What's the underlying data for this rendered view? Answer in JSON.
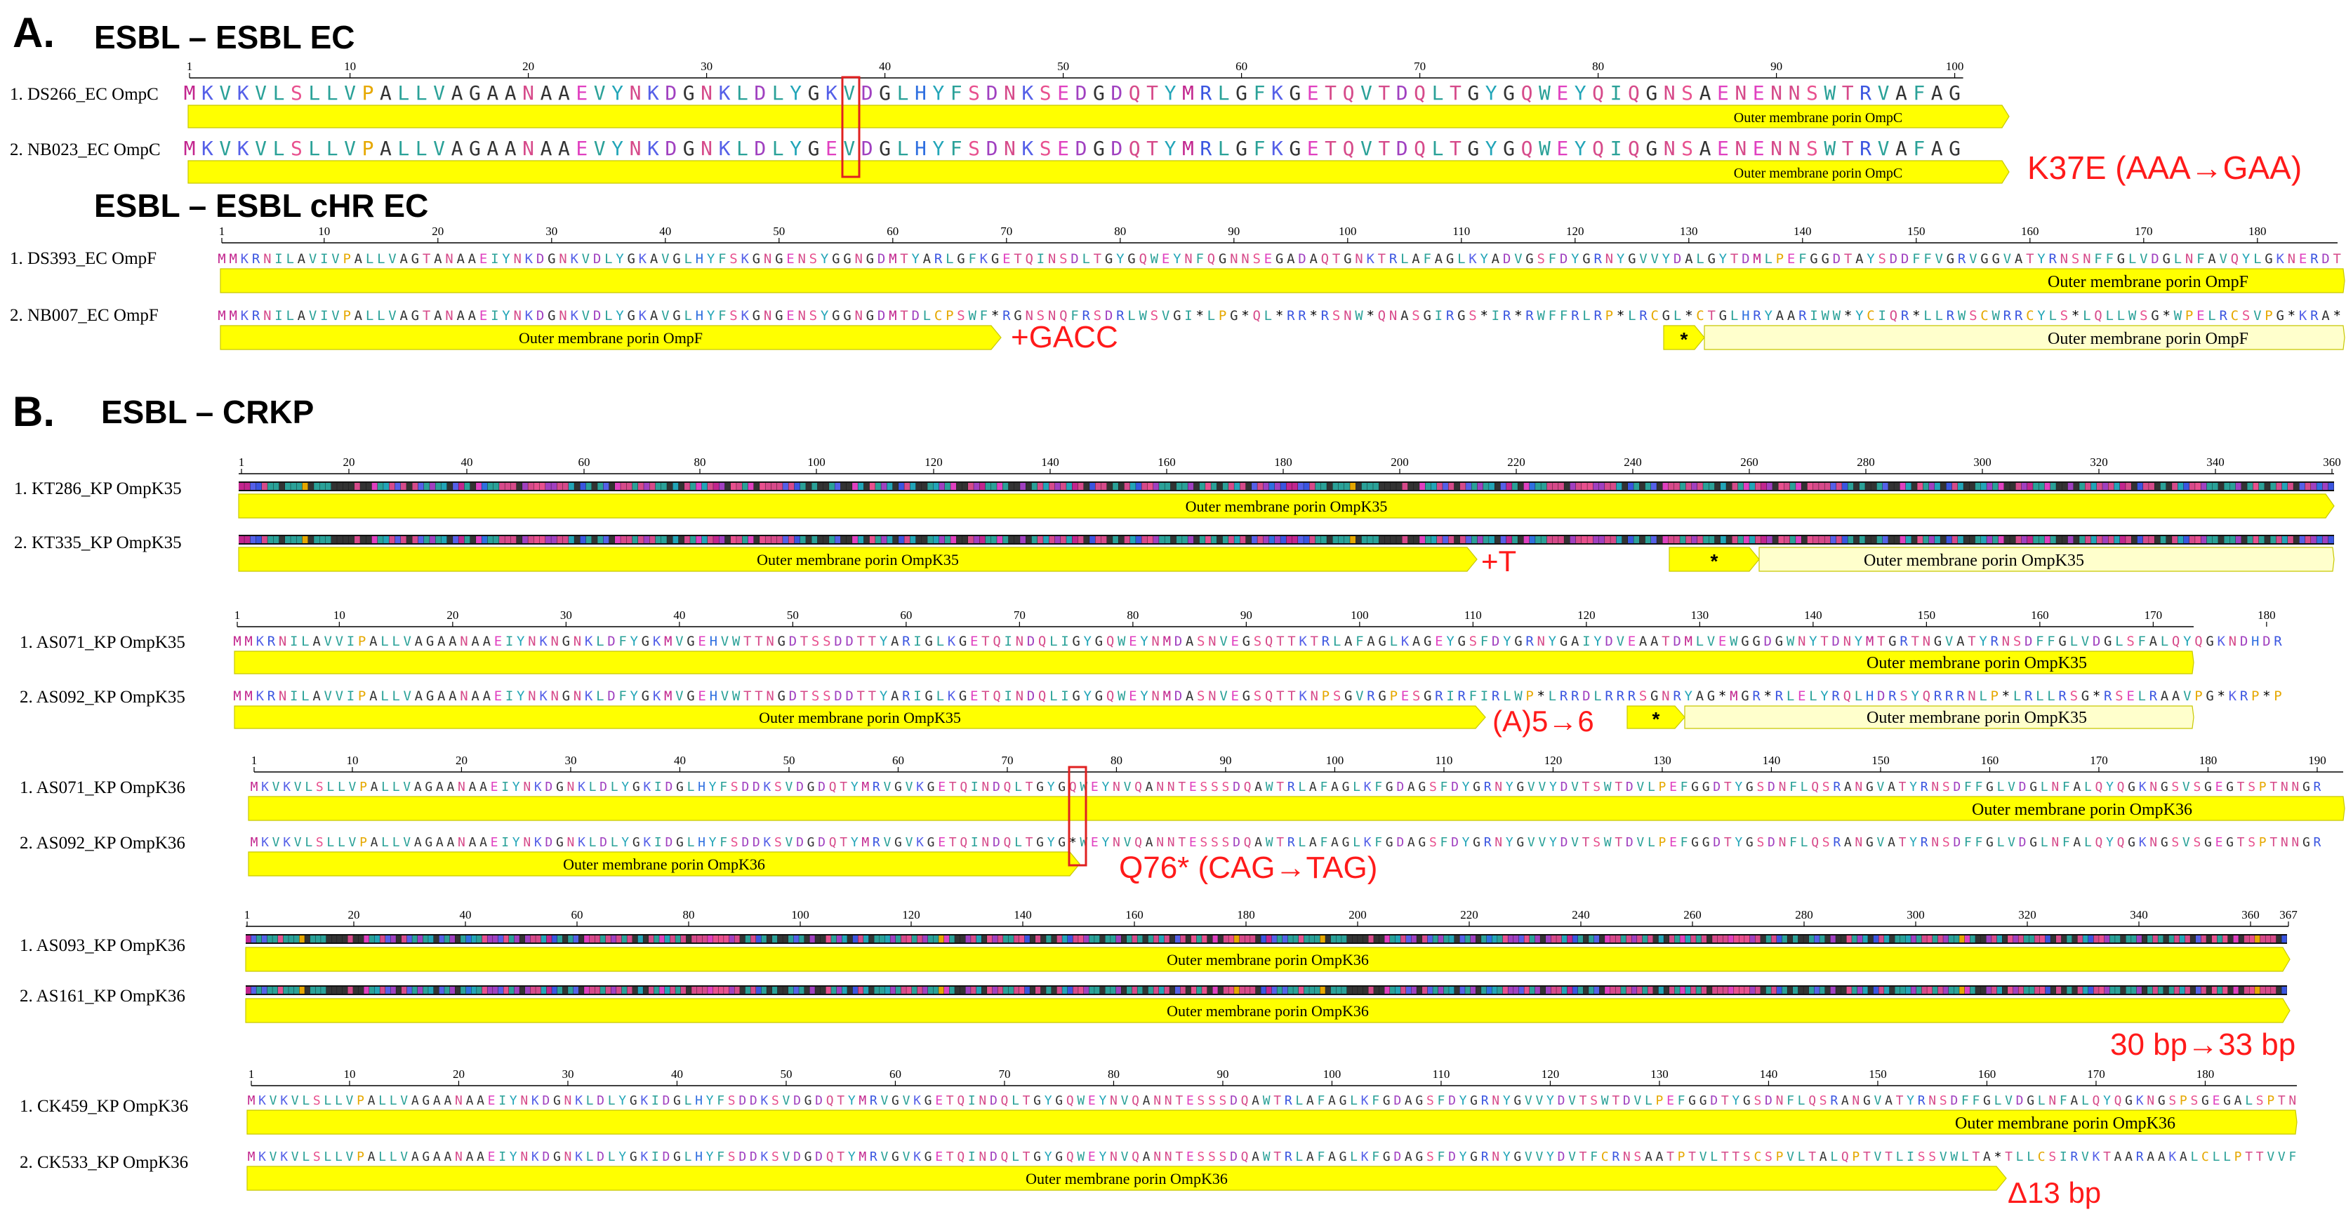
{
  "colors": {
    "annotation": "#ff1a1a",
    "feature_fill": "#ffff00",
    "feature_fill_light": "#ffffcc",
    "feature_border": "#c8c800",
    "mutation_box": "#e02020"
  },
  "residue_colors": {
    "M": "#c2258e",
    "K": "#5560e8",
    "V": "#2aa198",
    "L": "#2aa198",
    "S": "#e8508e",
    "P": "#e6a800",
    "A": "#333333",
    "G": "#333333",
    "E": "#e040c0",
    "Y": "#22a5b8",
    "N": "#d64a8a",
    "D": "#a040c0",
    "Q": "#d64a8a",
    "H": "#2f6fe0",
    "F": "#2aa198",
    "R": "#3a55e0",
    "T": "#d64a8a",
    "W": "#2aa198",
    "I": "#2aa198",
    "C": "#e6a800",
    "*": "#000000"
  },
  "section_a": {
    "letter": "A.",
    "heading_1": "ESBL – ESBL EC",
    "heading_2": "ESBL – ESBL cHR EC"
  },
  "section_b": {
    "letter": "B.",
    "heading": "ESBL – CRKP"
  },
  "feature_labels": {
    "ompc": "Outer membrane porin OmpC",
    "ompf": "Outer membrane porin OmpF",
    "ompk35": "Outer membrane porin OmpK35",
    "ompk36": "Outer membrane porin OmpK36",
    "stop_marker": "*"
  },
  "annotations": {
    "k37e": "K37E (AAA→GAA)",
    "gacc": "+GACC",
    "plus_t": "+T",
    "a5to6": "(A)5→6",
    "q76": "Q76* (CAG→TAG)",
    "bp30to33": "30 bp→33 bp",
    "del13": "Δ13 bp"
  },
  "alignments": [
    {
      "id": "ompc",
      "tick_labels": [
        "1",
        "10",
        "20",
        "30",
        "40",
        "50",
        "60",
        "70",
        "80",
        "90",
        "100"
      ],
      "rows": [
        {
          "label": "1. DS266_EC OmpC",
          "seq": "MKVKVLSLLVPALLVAGAANAAEVYNKDGNKLDLYGKVDGLHYFSDNKSEDGDQTYMRLGFKGETQVTDQLTGYGQWEYQIQGNSAENENNSWTRVAFAG"
        },
        {
          "label": "2. NB023_EC OmpC",
          "seq": "MKVKVLSLLVPALLVAGAANAAEVYNKDGNKLDLYGEVDGLHYFSDNKSEDGDQTYMRLGFKGETQVTDQLTGYGQWEYQIQGNSAENENNSWTRVAFAG"
        }
      ]
    },
    {
      "id": "ompf",
      "tick_labels": [
        "1",
        "10",
        "20",
        "30",
        "40",
        "50",
        "60",
        "70",
        "80",
        "90",
        "100",
        "110",
        "120",
        "130",
        "140",
        "150",
        "160",
        "170",
        "180"
      ],
      "rows": [
        {
          "label": "1. DS393_EC OmpF",
          "seq": "MMKRNILAVIVPALLVAGTANAAEIYNKDGNKVDLYGKAVGLHYFSKGNGENSYGGNGDMTYARLGFKGETQINSDLTGYGQWEYNFQGNNSEGADAQTGNKTRLAFAGLKYADVGSFDYGRNYGVVYDALGYTDMLPEFGGDTAYSDDFFVGRVGGVATYRNSNFFGLVDGLNFAVQYLGKNERDT"
        },
        {
          "label": "2. NB007_EC OmpF",
          "seq": "MMKRNILAVIVPALLVAGTANAAEIYNKDGNKVDLYGKAVGLHYFSKGNGENSYGGNGDMTDLCPSWF*RGNSNQFRSDRLWSVGI*LPG*QL*RR*RSNW*QNASGIRGS*IR*RWFFRLRP*LRCGL*CTGLHRYAARIWW*YCIQR*LLRWSCWRRCYLS*LQLLWSG*WPELRCSVPG*KRA*"
        }
      ]
    },
    {
      "id": "ompk35_bar",
      "tick_labels": [
        "1",
        "20",
        "40",
        "60",
        "80",
        "100",
        "120",
        "140",
        "160",
        "180",
        "200",
        "220",
        "240",
        "260",
        "280",
        "300",
        "320",
        "340",
        "360"
      ],
      "rows": [
        {
          "label": "1. KT286_KP OmpK35"
        },
        {
          "label": "2. KT335_KP OmpK35"
        }
      ]
    },
    {
      "id": "ompk35",
      "tick_labels": [
        "1",
        "10",
        "20",
        "30",
        "40",
        "50",
        "60",
        "70",
        "80",
        "90",
        "100",
        "110",
        "120",
        "130",
        "140",
        "150",
        "160",
        "170",
        "180"
      ],
      "rows": [
        {
          "label": "1. AS071_KP OmpK35",
          "seq": "MMKRNILAVVIPALLVAGAANAAEIYNKNGNKLDFYGKMVGEHVWTTNGDTSSDDTTYARIGLKGETQINDQLIGYGQWEYNMDASNVEGSQTTKTRLAFAGLKAGEYGSFDYGRNYGAIYDVEAATDMLVEWGGDGWNYTDNYMTGRTNGVATYRNSDFFGLVDGLSFALQYQGKNDHDR"
        },
        {
          "label": "2. AS092_KP OmpK35",
          "seq": "MMKRNILAVVIPALLVAGAANAAEIYNKNGNKLDFYGKMVGEHVWTTNGDTSSDDTTYARIGLKGETQINDQLIGYGQWEYNMDASNVEGSQTTKNPSGVRGPESGRIRFIRLWP*LRRDLRRRSGNRYAG*MGR*RLELYRQLHDRSYQRRRNLP*LRLLRSG*RSELRAAVPG*KRP*P"
        }
      ]
    },
    {
      "id": "ompk36",
      "tick_labels": [
        "1",
        "10",
        "20",
        "30",
        "40",
        "50",
        "60",
        "70",
        "80",
        "90",
        "100",
        "110",
        "120",
        "130",
        "140",
        "150",
        "160",
        "170",
        "180",
        "190"
      ],
      "rows": [
        {
          "label": "1. AS071_KP OmpK36",
          "seq": "MKVKVLSLLVPALLVAGAANAAEIYNKDGNKLDLYGKIDGLHYFSDDKSVDGDQTYMRVGVKGETQINDQLTGYGQWEYNVQANNTESSSDQAWTRLAFAGLKFGDAGSFDYGRNYGVVYDVTSWTDVLPEFGGDTYGSDNFLQSRANGVATYRNSDFFGLVDGLNFALQYQGKNGSVSGEGTSPTNNGR"
        },
        {
          "label": "2. AS092_KP OmpK36",
          "seq": "MKVKVLSLLVPALLVAGAANAAEIYNKDGNKLDLYGKIDGLHYFSDDKSVDGDQTYMRVGVKGETQINDQLTGYG*WEYNVQANNTESSSDQAWTRLAFAGLKFGDAGSFDYGRNYGVVYDVTSWTDVLPEFGGDTYGSDNFLQSRANGVATYRNSDFFGLVDGLNFALQYQGKNGSVSGEGTSPTNNGR"
        }
      ]
    },
    {
      "id": "ompk36_bar",
      "tick_labels": [
        "1",
        "20",
        "40",
        "60",
        "80",
        "100",
        "120",
        "140",
        "160",
        "180",
        "200",
        "220",
        "240",
        "260",
        "280",
        "300",
        "320",
        "340",
        "360",
        "367"
      ],
      "rows": [
        {
          "label": "1. AS093_KP OmpK36"
        },
        {
          "label": "2. AS161_KP OmpK36"
        }
      ]
    },
    {
      "id": "ompk36b",
      "tick_labels": [
        "1",
        "10",
        "20",
        "30",
        "40",
        "50",
        "60",
        "70",
        "80",
        "90",
        "100",
        "110",
        "120",
        "130",
        "140",
        "150",
        "160",
        "170",
        "180"
      ],
      "rows": [
        {
          "label": "1. CK459_KP OmpK36",
          "seq": "MKVKVLSLLVPALLVAGAANAAEIYNKDGNKLDLYGKIDGLHYFSDDKSVDGDQTYMRVGVKGETQINDQLTGYGQWEYNVQANNTESSSDQAWTRLAFAGLKFGDAGSFDYGRNYGVVYDVTSWTDVLPEFGGDTYGSDNFLQSRANGVATYRNSDFFGLVDGLNFALQYQGKNGSPSGEGALSPTN"
        },
        {
          "label": "2. CK533_KP OmpK36",
          "seq": "MKVKVLSLLVPALLVAGAANAAEIYNKDGNKLDLYGKIDGLHYFSDDKSVDGDQTYMRVGVKGETQINDQLTGYGQWEYNVQANNTESSSDQAWTRLAFAGLKFGDAGSFDYGRNYGVVYDVTFCRNSAATPTVLTTSCSPVLTALQPTVTLISSVWLTA*TLLCSIRVKTAARAAKALCLLPTTVVF"
        }
      ]
    }
  ]
}
